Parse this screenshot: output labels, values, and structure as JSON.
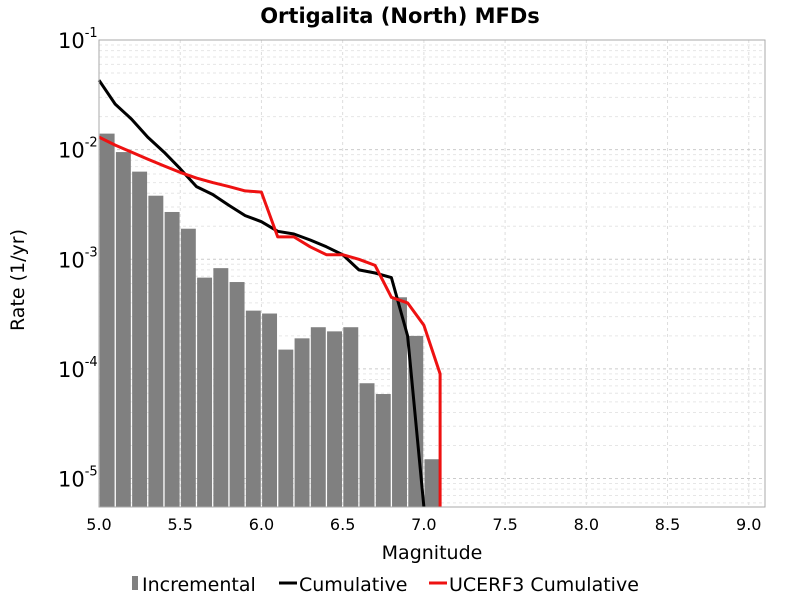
{
  "chart_data": {
    "type": "bar",
    "title": "Ortigalita (North) MFDs",
    "xlabel": "Magnitude",
    "ylabel": "Rate (1/yr)",
    "xlim": [
      5.0,
      9.1
    ],
    "ylim": [
      5.5e-06,
      0.1
    ],
    "yscale": "log",
    "grid": true,
    "legend_placement": "bottom",
    "x_ticks": [
      "5.0",
      "5.5",
      "6.0",
      "6.5",
      "7.0",
      "7.5",
      "8.0",
      "8.5",
      "9.0"
    ],
    "y_ticks": [
      {
        "base": "10",
        "exp": "-1"
      },
      {
        "base": "10",
        "exp": "-2"
      },
      {
        "base": "10",
        "exp": "-3"
      },
      {
        "base": "10",
        "exp": "-4"
      },
      {
        "base": "10",
        "exp": "-5"
      }
    ],
    "bar_color": "#808080",
    "series": [
      {
        "name": "Incremental",
        "kind": "bar",
        "color": "#808080",
        "x": [
          5.05,
          5.15,
          5.25,
          5.35,
          5.45,
          5.55,
          5.65,
          5.75,
          5.85,
          5.95,
          6.05,
          6.15,
          6.25,
          6.35,
          6.45,
          6.55,
          6.65,
          6.75,
          6.85,
          6.95,
          7.05
        ],
        "y": [
          0.014,
          0.0095,
          0.0063,
          0.0038,
          0.0027,
          0.0019,
          0.00068,
          0.00083,
          0.00062,
          0.00034,
          0.00032,
          0.00015,
          0.00019,
          0.00024,
          0.00022,
          0.00024,
          7.4e-05,
          5.9e-05,
          0.00045,
          0.0002,
          1.5e-05
        ]
      },
      {
        "name": "Cumulative",
        "kind": "line",
        "color": "#000000",
        "x": [
          5.0,
          5.1,
          5.2,
          5.3,
          5.4,
          5.5,
          5.6,
          5.7,
          5.8,
          5.9,
          6.0,
          6.1,
          6.2,
          6.3,
          6.4,
          6.5,
          6.6,
          6.7,
          6.8,
          6.9,
          7.0
        ],
        "y": [
          0.043,
          0.026,
          0.019,
          0.013,
          0.0095,
          0.0067,
          0.0046,
          0.0039,
          0.0031,
          0.0025,
          0.0022,
          0.0018,
          0.0017,
          0.0015,
          0.0013,
          0.0011,
          0.0008,
          0.00075,
          0.00068,
          0.0002,
          5.5e-06
        ]
      },
      {
        "name": "UCERF3 Cumulative",
        "kind": "line",
        "color": "#ee1111",
        "x": [
          5.0,
          5.1,
          5.2,
          5.3,
          5.4,
          5.5,
          5.6,
          5.7,
          5.8,
          5.9,
          6.0,
          6.1,
          6.2,
          6.3,
          6.4,
          6.5,
          6.6,
          6.7,
          6.8,
          6.9,
          7.0,
          7.1,
          7.1
        ],
        "y": [
          0.013,
          0.011,
          0.0095,
          0.0082,
          0.0071,
          0.0062,
          0.0055,
          0.005,
          0.0046,
          0.0042,
          0.0041,
          0.0016,
          0.0016,
          0.0013,
          0.0011,
          0.0011,
          0.001,
          0.00088,
          0.00045,
          0.0004,
          0.00025,
          9e-05,
          5.5e-06
        ]
      }
    ]
  }
}
